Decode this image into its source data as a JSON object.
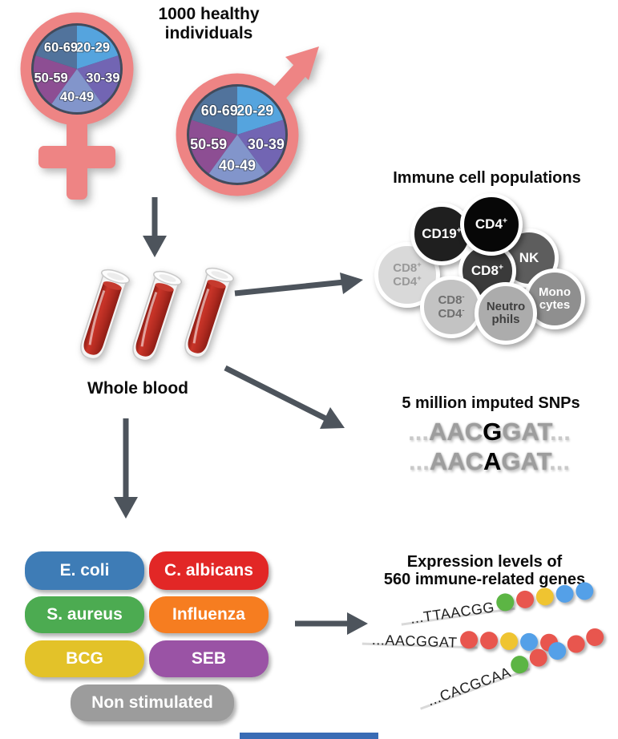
{
  "header": {
    "title_line1": "1000 healthy",
    "title_line2": "individuals"
  },
  "demographics": {
    "age_groups": [
      "20-29",
      "30-39",
      "40-49",
      "50-59",
      "60-69"
    ],
    "pie_colors": [
      "#55a4de",
      "#7265b3",
      "#8295cb",
      "#8d4e93",
      "#51739c"
    ],
    "symbol_color": "#ee8484",
    "ring_color": "#414b5c",
    "genders": [
      "female",
      "male"
    ]
  },
  "whole_blood": {
    "label": "Whole blood",
    "blood_color": "#b02a20"
  },
  "immune_cells": {
    "title": "Immune cell populations",
    "cells": [
      {
        "lines": [
          "CD8+",
          "CD4+"
        ],
        "bg": "#d9d9d9",
        "fg": "#999999"
      },
      {
        "lines": [
          "CD19+"
        ],
        "bg": "#1f1f1f",
        "fg": "#ffffff"
      },
      {
        "lines": [
          "NK"
        ],
        "bg": "#5d5d5d",
        "fg": "#ffffff"
      },
      {
        "lines": [
          "CD8+"
        ],
        "bg": "#3a3a3a",
        "fg": "#ffffff"
      },
      {
        "lines": [
          "CD4+"
        ],
        "bg": "#070707",
        "fg": "#ffffff"
      },
      {
        "lines": [
          "Mono",
          "cytes"
        ],
        "bg": "#8f8f8f",
        "fg": "#ffffff"
      },
      {
        "lines": [
          "CD8-",
          "CD4-"
        ],
        "bg": "#c3c3c3",
        "fg": "#6f6f6f"
      },
      {
        "lines": [
          "Neutro",
          "phils"
        ],
        "bg": "#acacac",
        "fg": "#3f3f3f"
      }
    ]
  },
  "snps": {
    "title": "5 million imputed SNPs",
    "sequences": [
      {
        "leading": "...",
        "prefix": "AAC",
        "variant": "G",
        "suffix": "GAT",
        "trailing": "..."
      },
      {
        "leading": "...",
        "prefix": "AAC",
        "variant": "A",
        "suffix": "GAT",
        "trailing": "..."
      }
    ]
  },
  "stimulations": {
    "items": [
      {
        "label": "E. coli",
        "color": "#3e7cb6"
      },
      {
        "label": "C. albicans",
        "color": "#e22726"
      },
      {
        "label": "S. aureus",
        "color": "#4cab51"
      },
      {
        "label": "Influenza",
        "color": "#f67d20"
      },
      {
        "label": "BCG",
        "color": "#e3c229"
      },
      {
        "label": "SEB",
        "color": "#9a53a5"
      },
      {
        "label": "Non stimulated",
        "color": "#9c9c9c"
      }
    ]
  },
  "expression": {
    "title_line1": "Expression levels of",
    "title_line2": "560 immune-related genes",
    "dot_palette": {
      "green": "#5cb544",
      "red": "#e8564e",
      "yellow": "#efc431",
      "blue": "#54a0e8"
    },
    "rows": [
      {
        "sequence": "...TTAACGG",
        "dots": [
          "green",
          "red",
          "yellow",
          "blue",
          "blue"
        ]
      },
      {
        "sequence": "...AACGGAT",
        "dots": [
          "red",
          "red",
          "yellow",
          "blue",
          "red"
        ]
      },
      {
        "sequence": "...CACGCAA",
        "dots": [
          "green",
          "red",
          "blue",
          "red",
          "red"
        ]
      }
    ]
  },
  "arrow_color": "#4d545c"
}
